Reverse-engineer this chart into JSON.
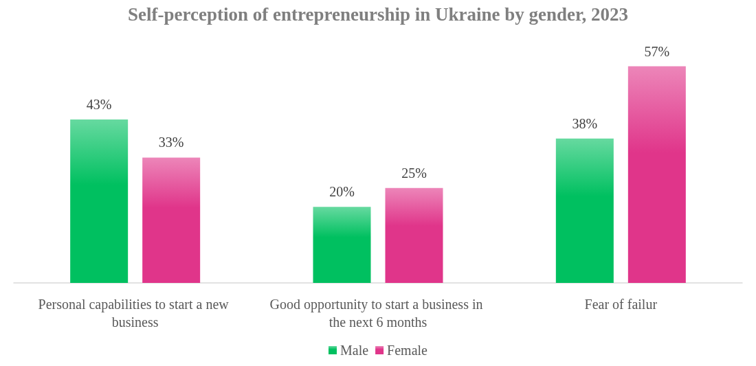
{
  "chart_data": {
    "type": "bar",
    "title": "Self-perception of entrepreneurship in Ukraine by gender, 2023",
    "categories": [
      "Personal capabilities to start a new business",
      "Good opportunity to start a business in the next 6 months",
      "Fear of failur"
    ],
    "series": [
      {
        "name": "Male",
        "color": "#00c060",
        "values": [
          43,
          20,
          38
        ],
        "value_labels": [
          "43%",
          "20%",
          "38%"
        ]
      },
      {
        "name": "Female",
        "color": "#e0358a",
        "values": [
          33,
          25,
          57
        ],
        "value_labels": [
          "33%",
          "25%",
          "57%"
        ]
      }
    ],
    "legend": "bottom"
  }
}
